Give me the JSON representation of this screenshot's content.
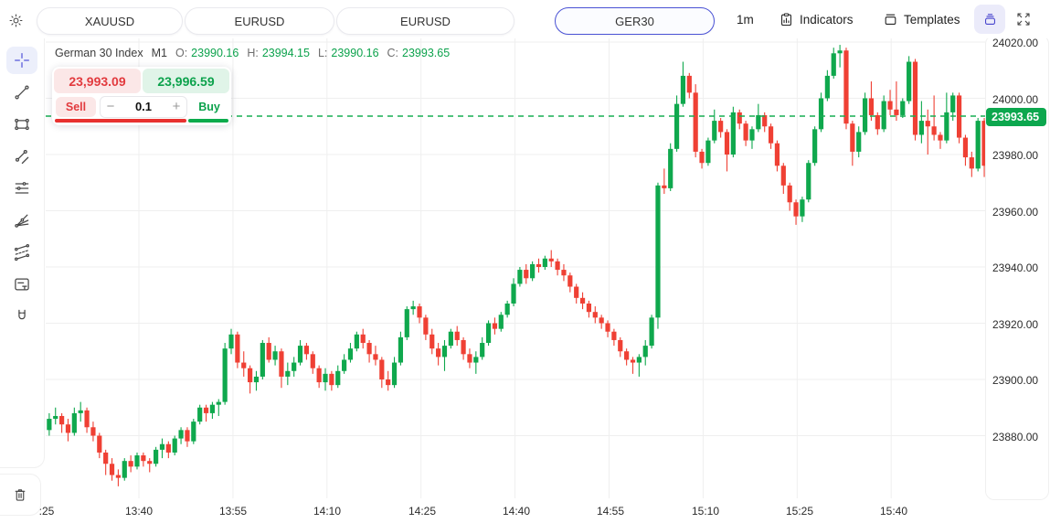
{
  "topbar": {
    "tabs": [
      {
        "label": "XAUUSD",
        "active": false
      },
      {
        "label": "EURUSD",
        "active": false
      },
      {
        "label": "EURUSD",
        "active": false
      },
      {
        "label": "GER30",
        "active": true
      }
    ],
    "timeframe": "1m",
    "indicators_label": "Indicators",
    "templates_label": "Templates"
  },
  "toolbar": {
    "tools": [
      "crosshair",
      "trend-line",
      "rectangle",
      "ray",
      "horizontal-lines",
      "gann-fan",
      "channel",
      "text-note",
      "magnet"
    ],
    "active_tool": "crosshair"
  },
  "legend": {
    "symbol": "German 30 Index",
    "interval": "M1",
    "o_label": "O:",
    "o": "23990.16",
    "h_label": "H:",
    "h": "23994.15",
    "l_label": "L:",
    "l": "23990.16",
    "c_label": "C:",
    "c": "23993.65"
  },
  "trade_widget": {
    "sell_price": "23,993.09",
    "buy_price": "23,996.59",
    "sell_label": "Sell",
    "buy_label": "Buy",
    "quantity": "0.1",
    "minus": "−",
    "plus": "+",
    "sentiment": {
      "sell_pct": 76,
      "buy_pct": 24
    }
  },
  "chart_data": {
    "type": "candlestick",
    "title": "German 30 Index",
    "interval": "M1",
    "current_price": 23993.65,
    "current_price_label": "23993.65",
    "ylim": [
      23858,
      24024
    ],
    "grid": true,
    "y_ticks": [
      24020,
      24000,
      23980,
      23960,
      23940,
      23920,
      23900,
      23880
    ],
    "y_tick_labels": [
      "24020.00",
      "24000.00",
      "23980.00",
      "23960.00",
      "23940.00",
      "23920.00",
      "23900.00",
      "23880.00"
    ],
    "x_ticks": [
      ":25",
      "13:40",
      "13:55",
      "14:10",
      "14:25",
      "14:40",
      "14:55",
      "15:10",
      "15:25",
      "15:40"
    ],
    "colors": {
      "up": "#0FA84D",
      "down": "#EF4034",
      "grid": "#EFEFEF",
      "current_line": "#17AD52",
      "price_tag": "#0CA74E"
    },
    "candles": [
      [
        23887,
        23889,
        23879,
        23882
      ],
      [
        23882,
        23888,
        23880,
        23886
      ],
      [
        23886,
        23890,
        23884,
        23887
      ],
      [
        23887,
        23888,
        23881,
        23884
      ],
      [
        23884,
        23886,
        23878,
        23881
      ],
      [
        23881,
        23890,
        23880,
        23888
      ],
      [
        23888,
        23892,
        23885,
        23889
      ],
      [
        23889,
        23890,
        23881,
        23883
      ],
      [
        23883,
        23885,
        23878,
        23880
      ],
      [
        23880,
        23881,
        23872,
        23874
      ],
      [
        23874,
        23875,
        23866,
        23870
      ],
      [
        23870,
        23872,
        23864,
        23866
      ],
      [
        23866,
        23868,
        23862,
        23865
      ],
      [
        23865,
        23872,
        23864,
        23871
      ],
      [
        23871,
        23873,
        23867,
        23869
      ],
      [
        23869,
        23874,
        23868,
        23873
      ],
      [
        23873,
        23874,
        23869,
        23871
      ],
      [
        23871,
        23872,
        23867,
        23870
      ],
      [
        23870,
        23876,
        23869,
        23875
      ],
      [
        23875,
        23879,
        23872,
        23877
      ],
      [
        23877,
        23878,
        23872,
        23874
      ],
      [
        23874,
        23880,
        23873,
        23879
      ],
      [
        23879,
        23883,
        23877,
        23882
      ],
      [
        23882,
        23883,
        23876,
        23878
      ],
      [
        23878,
        23886,
        23877,
        23885
      ],
      [
        23885,
        23891,
        23884,
        23890
      ],
      [
        23890,
        23891,
        23885,
        23888
      ],
      [
        23888,
        23892,
        23886,
        23891
      ],
      [
        23891,
        23893,
        23887,
        23892
      ],
      [
        23892,
        23913,
        23891,
        23911
      ],
      [
        23911,
        23918,
        23909,
        23916
      ],
      [
        23916,
        23917,
        23904,
        23906
      ],
      [
        23906,
        23910,
        23901,
        23904
      ],
      [
        23904,
        23905,
        23895,
        23899
      ],
      [
        23899,
        23903,
        23896,
        23901
      ],
      [
        23901,
        23914,
        23900,
        23913
      ],
      [
        23913,
        23915,
        23906,
        23907
      ],
      [
        23907,
        23912,
        23905,
        23910
      ],
      [
        23910,
        23911,
        23897,
        23901
      ],
      [
        23901,
        23906,
        23898,
        23903
      ],
      [
        23903,
        23908,
        23901,
        23906
      ],
      [
        23906,
        23914,
        23905,
        23912
      ],
      [
        23912,
        23913,
        23907,
        23909
      ],
      [
        23909,
        23910,
        23902,
        23904
      ],
      [
        23904,
        23905,
        23897,
        23899
      ],
      [
        23899,
        23904,
        23896,
        23902
      ],
      [
        23902,
        23903,
        23896,
        23898
      ],
      [
        23898,
        23905,
        23897,
        23903
      ],
      [
        23903,
        23909,
        23902,
        23907
      ],
      [
        23907,
        23913,
        23906,
        23911
      ],
      [
        23911,
        23917,
        23910,
        23916
      ],
      [
        23916,
        23918,
        23911,
        23913
      ],
      [
        23913,
        23914,
        23906,
        23909
      ],
      [
        23909,
        23912,
        23905,
        23907
      ],
      [
        23907,
        23908,
        23897,
        23900
      ],
      [
        23900,
        23903,
        23896,
        23898
      ],
      [
        23898,
        23908,
        23897,
        23906
      ],
      [
        23906,
        23917,
        23905,
        23915
      ],
      [
        23915,
        23926,
        23914,
        23925
      ],
      [
        23925,
        23928,
        23923,
        23926
      ],
      [
        23926,
        23927,
        23920,
        23922
      ],
      [
        23922,
        23923,
        23914,
        23916
      ],
      [
        23916,
        23918,
        23909,
        23911
      ],
      [
        23911,
        23913,
        23905,
        23908
      ],
      [
        23908,
        23914,
        23903,
        23912
      ],
      [
        23912,
        23918,
        23911,
        23917
      ],
      [
        23917,
        23919,
        23912,
        23914
      ],
      [
        23914,
        23915,
        23907,
        23909
      ],
      [
        23909,
        23911,
        23904,
        23906
      ],
      [
        23906,
        23910,
        23902,
        23908
      ],
      [
        23908,
        23915,
        23907,
        23913
      ],
      [
        23913,
        23921,
        23912,
        23920
      ],
      [
        23920,
        23922,
        23916,
        23918
      ],
      [
        23918,
        23924,
        23917,
        23923
      ],
      [
        23923,
        23928,
        23922,
        23927
      ],
      [
        23927,
        23936,
        23926,
        23934
      ],
      [
        23934,
        23940,
        23933,
        23939
      ],
      [
        23939,
        23941,
        23934,
        23936
      ],
      [
        23936,
        23942,
        23935,
        23941
      ],
      [
        23941,
        23943,
        23938,
        23940
      ],
      [
        23940,
        23944,
        23939,
        23943
      ],
      [
        23943,
        23946,
        23940,
        23942
      ],
      [
        23942,
        23943,
        23937,
        23939
      ],
      [
        23939,
        23941,
        23935,
        23937
      ],
      [
        23937,
        23938,
        23931,
        23933
      ],
      [
        23933,
        23934,
        23927,
        23929
      ],
      [
        23929,
        23931,
        23925,
        23927
      ],
      [
        23927,
        23928,
        23922,
        23924
      ],
      [
        23924,
        23926,
        23920,
        23922
      ],
      [
        23922,
        23923,
        23918,
        23920
      ],
      [
        23920,
        23921,
        23915,
        23917
      ],
      [
        23917,
        23918,
        23912,
        23914
      ],
      [
        23914,
        23915,
        23908,
        23910
      ],
      [
        23910,
        23911,
        23905,
        23907
      ],
      [
        23907,
        23908,
        23902,
        23906
      ],
      [
        23906,
        23909,
        23901,
        23908
      ],
      [
        23908,
        23914,
        23905,
        23912
      ],
      [
        23912,
        23923,
        23911,
        23922
      ],
      [
        23922,
        23970,
        23918,
        23969
      ],
      [
        23969,
        23975,
        23966,
        23968
      ],
      [
        23968,
        23984,
        23967,
        23982
      ],
      [
        23982,
        24001,
        23981,
        23998
      ],
      [
        23998,
        24013,
        23997,
        24008
      ],
      [
        24008,
        24009,
        24000,
        24002
      ],
      [
        24002,
        24005,
        23979,
        23981
      ],
      [
        23981,
        23982,
        23975,
        23977
      ],
      [
        23977,
        23986,
        23976,
        23985
      ],
      [
        23985,
        23996,
        23984,
        23992
      ],
      [
        23992,
        23993,
        23986,
        23988
      ],
      [
        23988,
        23989,
        23974,
        23980
      ],
      [
        23980,
        23997,
        23979,
        23995
      ],
      [
        23995,
        23996,
        23989,
        23991
      ],
      [
        23991,
        23992,
        23983,
        23985
      ],
      [
        23985,
        23990,
        23982,
        23989
      ],
      [
        23989,
        23998,
        23988,
        23994
      ],
      [
        23994,
        23995,
        23988,
        23990
      ],
      [
        23990,
        23991,
        23982,
        23984
      ],
      [
        23984,
        23985,
        23974,
        23976
      ],
      [
        23976,
        23977,
        23966,
        23969
      ],
      [
        23969,
        23970,
        23960,
        23963
      ],
      [
        23963,
        23964,
        23955,
        23958
      ],
      [
        23958,
        23965,
        23956,
        23964
      ],
      [
        23964,
        23978,
        23963,
        23977
      ],
      [
        23977,
        23990,
        23976,
        23989
      ],
      [
        23989,
        24002,
        23988,
        24000
      ],
      [
        24000,
        24010,
        23999,
        24008
      ],
      [
        24008,
        24018,
        24007,
        24016
      ],
      [
        24016,
        24019,
        24011,
        24017
      ],
      [
        24017,
        24018,
        23989,
        23991
      ],
      [
        23991,
        23992,
        23976,
        23981
      ],
      [
        23981,
        23990,
        23979,
        23988
      ],
      [
        23988,
        24002,
        23987,
        24000
      ],
      [
        24000,
        24006,
        23992,
        23994
      ],
      [
        23994,
        23995,
        23987,
        23989
      ],
      [
        23989,
        24001,
        23988,
        23999
      ],
      [
        23999,
        24003,
        23994,
        23996
      ],
      [
        23996,
        24006,
        23992,
        23994
      ],
      [
        23994,
        24000,
        23993,
        23999
      ],
      [
        23999,
        24015,
        23998,
        24013
      ],
      [
        24013,
        24014,
        23985,
        23987
      ],
      [
        23987,
        23999,
        23984,
        23992
      ],
      [
        23992,
        23996,
        23980,
        23990
      ],
      [
        23990,
        24001,
        23985,
        23987
      ],
      [
        23987,
        23988,
        23982,
        23985
      ],
      [
        23985,
        24002,
        23984,
        23995
      ],
      [
        23995,
        24002,
        23992,
        24001
      ],
      [
        24001,
        24002,
        23984,
        23986
      ],
      [
        23986,
        23987,
        23976,
        23979
      ],
      [
        23979,
        23981,
        23972,
        23975
      ],
      [
        23975,
        23993,
        23974,
        23992
      ],
      [
        23992,
        23993,
        23972,
        23976
      ],
      [
        23990.16,
        23994.15,
        23990.16,
        23993.65
      ]
    ]
  }
}
